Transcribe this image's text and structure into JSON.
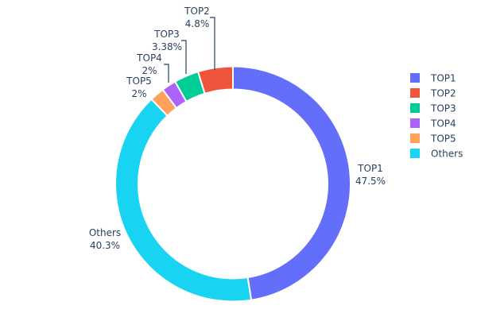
{
  "chart_data": {
    "type": "pie",
    "hole": true,
    "categories": [
      "TOP1",
      "TOP2",
      "TOP3",
      "TOP4",
      "TOP5",
      "Others"
    ],
    "values": [
      47.5,
      4.8,
      3.38,
      2,
      2,
      40.3
    ],
    "labels": [
      "47.5%",
      "4.8%",
      "3.38%",
      "2%",
      "2%",
      "40.3%"
    ],
    "colors": [
      "#636efa",
      "#EF553B",
      "#00cc96",
      "#ab63fa",
      "#FFA15A",
      "#19d3f3"
    ],
    "draw_order": [
      "TOP1",
      "Others",
      "TOP5",
      "TOP4",
      "TOP3",
      "TOP2"
    ],
    "direction": "clockwise",
    "legend": {
      "placement": "right",
      "entries": [
        "TOP1",
        "TOP2",
        "TOP3",
        "TOP4",
        "TOP5",
        "Others"
      ]
    }
  }
}
